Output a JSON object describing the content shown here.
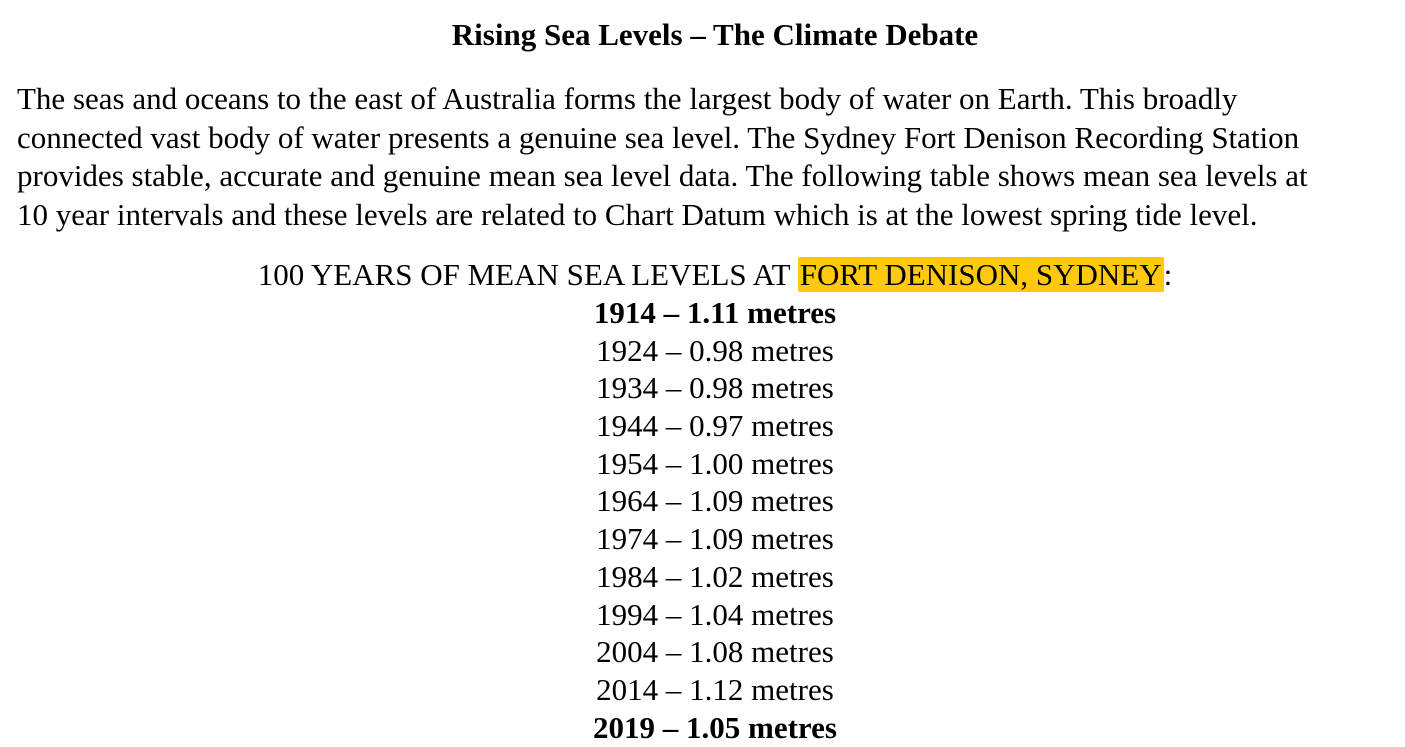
{
  "document": {
    "title": "Rising Sea Levels – The Climate Debate",
    "paragraph_lines": [
      "The seas and oceans to the east of Australia forms the largest body of water on Earth.  This broadly",
      "connected vast body of water presents a genuine sea level.  The Sydney Fort Denison Recording Station",
      "provides stable, accurate and genuine mean sea level data. The following table shows mean sea levels at",
      "10 year intervals and these levels are related to Chart Datum which is at the lowest spring tide level."
    ],
    "table_heading": {
      "prefix": "100 YEARS OF MEAN SEA LEVELS AT ",
      "highlighted": "FORT DENISON, SYDNEY",
      "suffix": ":"
    },
    "highlight_color": "#ffc90e",
    "sea_levels": [
      {
        "text": "1914 – 1.11 metres",
        "bold": true
      },
      {
        "text": "1924 – 0.98 metres",
        "bold": false
      },
      {
        "text": "1934 – 0.98 metres",
        "bold": false
      },
      {
        "text": "1944 – 0.97 metres",
        "bold": false
      },
      {
        "text": "1954 – 1.00 metres",
        "bold": false
      },
      {
        "text": "1964 – 1.09 metres",
        "bold": false
      },
      {
        "text": "1974 – 1.09 metres",
        "bold": false
      },
      {
        "text": "1984 – 1.02 metres",
        "bold": false
      },
      {
        "text": "1994 – 1.04 metres",
        "bold": false
      },
      {
        "text": "2004 – 1.08 metres",
        "bold": false
      },
      {
        "text": "2014 – 1.12 metres",
        "bold": false
      },
      {
        "text": "2019 – 1.05 metres",
        "bold": true
      }
    ]
  }
}
